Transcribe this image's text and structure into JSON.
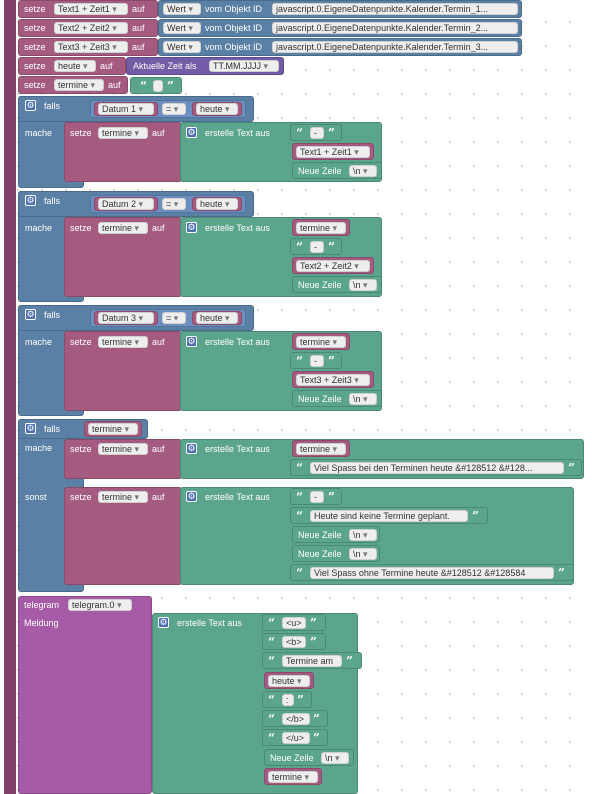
{
  "kw": {
    "setze": "setze",
    "auf": "auf",
    "falls": "falls",
    "mache": "mache",
    "sonst": "sonst",
    "wert": "Wert",
    "vom_objekt": "vom Objekt ID",
    "aktuelle_zeit": "Aktuelle Zeit als",
    "erstelle": "erstelle Text aus",
    "neue_zeile": "Neue Zeile",
    "nl": "\\n",
    "eq": "=",
    "telegram": "telegram",
    "meldung": "Meldung"
  },
  "rows": [
    {
      "var": "Text1 + Zeit1",
      "oid": "javascript.0.EigeneDatenpunkte.Kalender.Termin_1..."
    },
    {
      "var": "Text2 + Zeit2",
      "oid": "javascript.0.EigeneDatenpunkte.Kalender.Termin_2..."
    },
    {
      "var": "Text3 + Zeit3",
      "oid": "javascript.0.EigeneDatenpunkte.Kalender.Termin_3..."
    }
  ],
  "heute_var": "heute",
  "format": "TT.MM.JJJJ",
  "termine_var": "termine",
  "if1": {
    "left": "Datum 1",
    "right": "heute",
    "sep": "-",
    "text": "Text1 + Zeit1"
  },
  "if2": {
    "left": "Datum 2",
    "right": "heute",
    "sep": "-",
    "text": "Text2 + Zeit2"
  },
  "if3": {
    "left": "Datum 3",
    "right": "heute",
    "sep": "-",
    "text": "Text3 + Zeit3"
  },
  "if4": {
    "cond": "termine",
    "msg_yes": "Viel Spass bei den Terminen heute &#128512 &#128...",
    "sep": "-",
    "msg_no1": "Heute sind keine Termine geplant.",
    "msg_no2": "Viel Spass ohne Termine heute &#128512 &#128584"
  },
  "tg": {
    "instance": "telegram.0",
    "u": "<u>",
    "b": "<b>",
    "title": "Termine am",
    "heute": "heute",
    "colon": ":",
    "b_end": "</b>",
    "u_end": "</u>",
    "termine": "termine"
  }
}
